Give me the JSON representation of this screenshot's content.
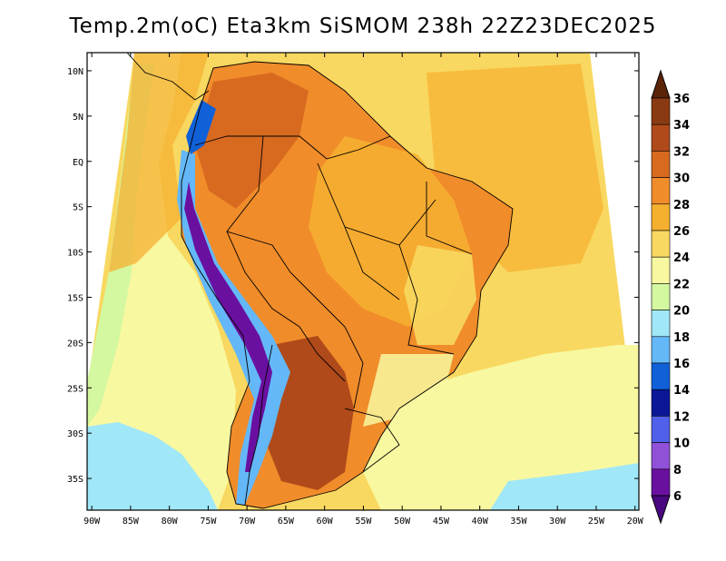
{
  "title": "Temp.2m(oC) Eta3km SiSMOM 238h 22Z23DEC2025",
  "map": {
    "variable": "Temp.2m",
    "units": "oC",
    "region": "South America / Brazil",
    "lat_labels": [
      "10N",
      "5N",
      "EQ",
      "5S",
      "10S",
      "15S",
      "20S",
      "25S",
      "30S",
      "35S"
    ],
    "lat_values": [
      10,
      5,
      0,
      -5,
      -10,
      -15,
      -20,
      -25,
      -30,
      -35
    ],
    "lon_labels": [
      "90W",
      "85W",
      "80W",
      "75W",
      "70W",
      "65W",
      "60W",
      "55W",
      "50W",
      "45W",
      "40W",
      "35W",
      "30W",
      "25W",
      "20W"
    ],
    "lon_values": [
      -90,
      -85,
      -80,
      -75,
      -70,
      -65,
      -60,
      -55,
      -50,
      -45,
      -40,
      -35,
      -30,
      -25,
      -20
    ],
    "lon_range": [
      -90.6,
      -19.5
    ],
    "lat_range": [
      -38.5,
      12.0
    ]
  },
  "colorbar": {
    "labels": [
      "36",
      "34",
      "32",
      "30",
      "28",
      "26",
      "24",
      "22",
      "20",
      "18",
      "16",
      "14",
      "12",
      "10",
      "8",
      "6"
    ],
    "colors": [
      "#5a2408",
      "#8a3a12",
      "#b04a1a",
      "#d86a20",
      "#f08c2a",
      "#f6b030",
      "#f8d860",
      "#f8f8a0",
      "#d4f8a0",
      "#a0e8f8",
      "#64b8f8",
      "#1060d8",
      "#0a1898",
      "#5060e8",
      "#9050d8",
      "#6a10a0",
      "#4a0880"
    ]
  }
}
